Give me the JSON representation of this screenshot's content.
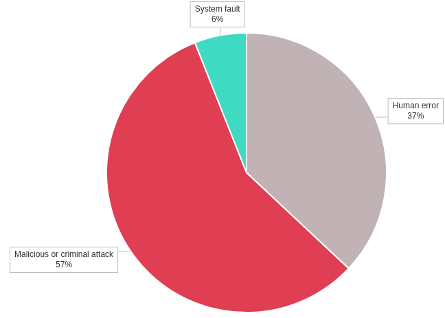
{
  "chart_data": {
    "type": "pie",
    "categories": [
      "Human error",
      "Malicious or criminal attack",
      "System fault"
    ],
    "values": [
      37,
      57,
      6
    ],
    "value_labels": [
      "37%",
      "57%",
      "6%"
    ],
    "colors": [
      "#c1b3b5",
      "#e03e52",
      "#3edbc2"
    ],
    "data_labels": true
  }
}
